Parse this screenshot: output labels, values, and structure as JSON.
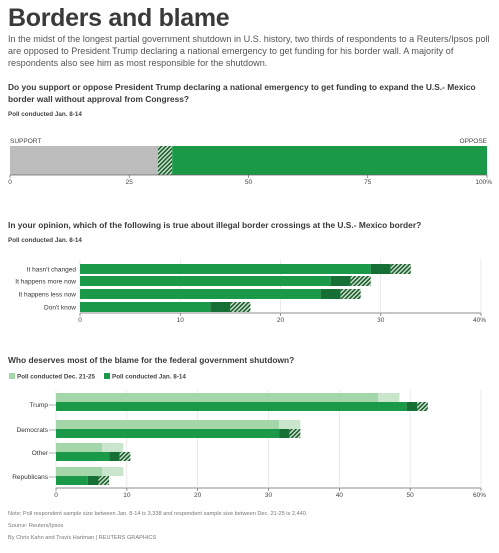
{
  "title": "Borders and blame",
  "intro": "In the midst of the longest partial government shutdown in U.S. history, two thirds of respondents to a Reuters/Ipsos poll are opposed to President Trump declaring a national emergency to get funding for his border wall. A majority of respondents also see him as most responsible for the shutdown.",
  "colors": {
    "support": "#bcbcbc",
    "oppose": "#1a9a48",
    "oppose_light": "#a3d6a9",
    "dark": "#166f34",
    "hatch_bg": "#1e5a2d"
  },
  "chart1": {
    "question": "Do you support or oppose President Trump declaring a national emergency to get funding to expand the U.S.- Mexico border wall without approval from Congress?",
    "poll_label": "Poll conducted Jan. 8-14",
    "left_label": "SUPPORT",
    "right_label": "OPPOSE",
    "ticks": [
      "0",
      "25",
      "50",
      "75",
      "100%"
    ]
  },
  "chart2": {
    "question": "In your opinion, which of the following is true about illegal border crossings at the U.S.- Mexico border?",
    "poll_label": "Poll conducted Jan. 8-14",
    "ticks": [
      "0",
      "10",
      "20",
      "30",
      "40%"
    ]
  },
  "chart3": {
    "question": "Who deserves most of the blame for the federal government shutdown?",
    "legend_dec": "Poll conducted Dec. 21-25",
    "legend_jan": "Poll conducted Jan. 8-14",
    "ticks": [
      "0",
      "10",
      "20",
      "30",
      "40",
      "50",
      "60%"
    ]
  },
  "footer": {
    "note": "Note: Poll respondent sample size between Jan. 8-14 is 3,338 and respondent sample size between Dec. 21-25 is 2,440.",
    "source": "Source: Reuters/Ipsos",
    "credit": "By Chris Kahn and Travis Hartman | REUTERS GRAPHICS"
  },
  "chart_data": [
    {
      "type": "bar",
      "orientation": "horizontal-stacked",
      "title": "Do you support or oppose President Trump declaring a national emergency to get funding to expand the U.S.- Mexico border wall without approval from Congress?",
      "subtitle": "Poll conducted Jan. 8-14",
      "xlim": [
        0,
        100
      ],
      "ticks": [
        0,
        25,
        50,
        75,
        100
      ],
      "segments": [
        {
          "name": "SUPPORT",
          "value": 31
        },
        {
          "name": "",
          "value": 3,
          "pattern": "hatched"
        },
        {
          "name": "OPPOSE",
          "value": 66
        }
      ]
    },
    {
      "type": "bar",
      "orientation": "horizontal",
      "title": "In your opinion, which of the following is true about illegal border crossings at the U.S.- Mexico border?",
      "subtitle": "Poll conducted Jan. 8-14",
      "xlim": [
        0,
        40
      ],
      "ticks": [
        0,
        10,
        20,
        30,
        40
      ],
      "categories": [
        "It hasn't changed",
        "It happens more now",
        "It happens less now",
        "Don't know"
      ],
      "values": [
        31,
        27,
        26,
        15
      ],
      "margin_of_error": [
        2,
        2,
        2,
        2
      ]
    },
    {
      "type": "bar",
      "orientation": "horizontal-grouped",
      "title": "Who deserves most of the blame for the federal government shutdown?",
      "xlim": [
        0,
        60
      ],
      "ticks": [
        0,
        10,
        20,
        30,
        40,
        50,
        60
      ],
      "categories": [
        "Trump",
        "Democrats",
        "Other",
        "Republicans"
      ],
      "series": [
        {
          "name": "Poll conducted Dec. 21-25",
          "values": [
            47,
            33,
            8,
            8
          ]
        },
        {
          "name": "Poll conducted Jan. 8-14",
          "values": [
            51,
            33,
            9,
            6
          ]
        }
      ],
      "margin_of_error": [
        1.5,
        1.5,
        1.5,
        1.5
      ]
    }
  ]
}
